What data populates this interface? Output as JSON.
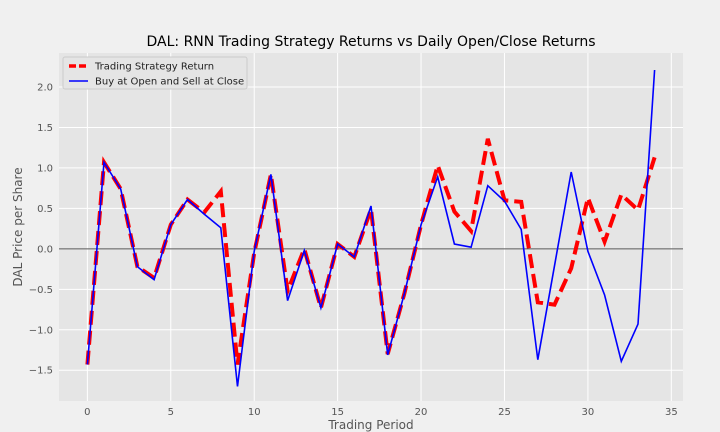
{
  "chart_data": {
    "type": "line",
    "title": "DAL: RNN Trading Strategy Returns vs Daily Open/Close Returns",
    "xlabel": "Trading Period",
    "ylabel": "DAL Price per Share",
    "xlim": [
      -1.7,
      35.7
    ],
    "ylim": [
      -1.88,
      2.42
    ],
    "x_ticks": [
      0,
      5,
      10,
      15,
      20,
      25,
      30,
      35
    ],
    "y_ticks": [
      -1.5,
      -1.0,
      -0.5,
      0.0,
      0.5,
      1.0,
      1.5,
      2.0
    ],
    "x_tick_labels": [
      "0",
      "5",
      "10",
      "15",
      "20",
      "25",
      "30",
      "35"
    ],
    "y_tick_labels": [
      "−1.5",
      "−1.0",
      "−0.5",
      "0.0",
      "0.5",
      "1.0",
      "1.5",
      "2.0"
    ],
    "grid": true,
    "zero_line": true,
    "legend_position": "top-left",
    "series": [
      {
        "name": "Trading Strategy Return",
        "color": "#ff0000",
        "style": "dashed",
        "x": [
          0,
          1,
          2,
          3,
          4,
          5,
          6,
          7,
          8,
          9,
          10,
          11,
          12,
          13,
          14,
          15,
          16,
          17,
          18,
          19,
          20,
          21,
          22,
          23,
          24,
          25,
          26,
          27,
          28,
          29,
          30,
          31,
          32,
          33,
          34
        ],
        "y": [
          -1.43,
          1.07,
          0.74,
          -0.22,
          -0.36,
          0.3,
          0.61,
          0.45,
          0.71,
          -1.43,
          -0.05,
          0.92,
          -0.52,
          0.0,
          -0.73,
          0.06,
          -0.1,
          0.49,
          -1.3,
          -0.55,
          0.3,
          1.03,
          0.46,
          0.22,
          1.36,
          0.6,
          0.58,
          -0.66,
          -0.69,
          -0.24,
          0.63,
          0.09,
          0.67,
          0.48,
          1.13
        ]
      },
      {
        "name": "Buy at Open and Sell at Close",
        "color": "#0000ff",
        "style": "solid",
        "x": [
          0,
          1,
          2,
          3,
          4,
          5,
          6,
          7,
          8,
          9,
          10,
          11,
          12,
          13,
          14,
          15,
          16,
          17,
          18,
          19,
          20,
          21,
          22,
          23,
          24,
          25,
          26,
          27,
          28,
          29,
          30,
          31,
          32,
          33,
          34
        ],
        "y": [
          -1.43,
          1.07,
          0.74,
          -0.22,
          -0.38,
          0.3,
          0.61,
          0.43,
          0.26,
          -1.7,
          -0.03,
          0.92,
          -0.64,
          -0.02,
          -0.73,
          0.06,
          -0.1,
          0.53,
          -1.31,
          -0.55,
          0.3,
          0.89,
          0.06,
          0.02,
          0.78,
          0.59,
          0.24,
          -1.37,
          -0.21,
          0.95,
          -0.03,
          -0.57,
          -1.39,
          -0.93,
          2.21
        ]
      }
    ]
  }
}
